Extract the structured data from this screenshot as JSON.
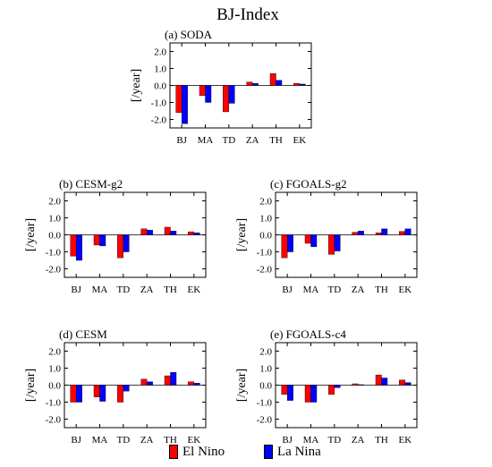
{
  "figure": {
    "title": "BJ-Index",
    "colors": {
      "el_nino": "#ff0000",
      "la_nina": "#0000ff"
    },
    "legend": {
      "el_nino": {
        "label": "El Nino",
        "color": "#ff0000"
      },
      "la_nina": {
        "label": "La Nina",
        "color": "#0000ff"
      }
    }
  },
  "chart_data": [
    {
      "type": "bar",
      "title": "(a) SODA",
      "ylabel": "[/year]",
      "ylim": [
        -2.5,
        2.5
      ],
      "yticks": [
        "2.0",
        "1.0",
        "0.0",
        "-1.0",
        "-2.0"
      ],
      "categories": [
        "BJ",
        "MA",
        "TD",
        "ZA",
        "TH",
        "EK"
      ],
      "series": [
        {
          "name": "El Nino",
          "color": "#ff0000",
          "values": [
            -1.6,
            -0.6,
            -1.55,
            0.2,
            0.7,
            0.12
          ]
        },
        {
          "name": "La Nina",
          "color": "#0000ff",
          "values": [
            -2.25,
            -1.0,
            -1.05,
            0.12,
            0.3,
            0.08
          ]
        }
      ]
    },
    {
      "type": "bar",
      "title": "(b) CESM-g2",
      "ylabel": "[/year]",
      "ylim": [
        -2.5,
        2.5
      ],
      "yticks": [
        "2.0",
        "1.0",
        "0.0",
        "-1.0",
        "-2.0"
      ],
      "categories": [
        "BJ",
        "MA",
        "TD",
        "ZA",
        "TH",
        "EK"
      ],
      "series": [
        {
          "name": "El Nino",
          "color": "#ff0000",
          "values": [
            -1.25,
            -0.6,
            -1.35,
            0.35,
            0.45,
            0.18
          ]
        },
        {
          "name": "La Nina",
          "color": "#0000ff",
          "values": [
            -1.5,
            -0.65,
            -1.0,
            0.28,
            0.22,
            0.12
          ]
        }
      ]
    },
    {
      "type": "bar",
      "title": "(c) FGOALS-g2",
      "ylabel": "[/year]",
      "ylim": [
        -2.5,
        2.5
      ],
      "yticks": [
        "2.0",
        "1.0",
        "0.0",
        "-1.0",
        "-2.0"
      ],
      "categories": [
        "BJ",
        "MA",
        "TD",
        "ZA",
        "TH",
        "EK"
      ],
      "series": [
        {
          "name": "El Nino",
          "color": "#ff0000",
          "values": [
            -1.35,
            -0.5,
            -1.15,
            0.15,
            0.12,
            0.2
          ]
        },
        {
          "name": "La Nina",
          "color": "#0000ff",
          "values": [
            -1.0,
            -0.7,
            -0.95,
            0.22,
            0.35,
            0.35
          ]
        }
      ]
    },
    {
      "type": "bar",
      "title": "(d) CESM",
      "ylabel": "[/year]",
      "ylim": [
        -2.5,
        2.5
      ],
      "yticks": [
        "2.0",
        "1.0",
        "0.0",
        "-1.0",
        "-2.0"
      ],
      "categories": [
        "BJ",
        "MA",
        "TD",
        "ZA",
        "TH",
        "EK"
      ],
      "series": [
        {
          "name": "El Nino",
          "color": "#ff0000",
          "values": [
            -1.0,
            -0.7,
            -1.0,
            0.35,
            0.55,
            0.2
          ]
        },
        {
          "name": "La Nina",
          "color": "#0000ff",
          "values": [
            -1.0,
            -0.95,
            -0.35,
            0.2,
            0.75,
            0.12
          ]
        }
      ]
    },
    {
      "type": "bar",
      "title": "(e) FGOALS-c4",
      "ylabel": "[/year]",
      "ylim": [
        -2.5,
        2.5
      ],
      "yticks": [
        "2.0",
        "1.0",
        "0.0",
        "-1.0",
        "-2.0"
      ],
      "categories": [
        "BJ",
        "MA",
        "TD",
        "ZA",
        "TH",
        "EK"
      ],
      "series": [
        {
          "name": "El Nino",
          "color": "#ff0000",
          "values": [
            -0.55,
            -1.0,
            -0.55,
            0.08,
            0.6,
            0.3
          ]
        },
        {
          "name": "La Nina",
          "color": "#0000ff",
          "values": [
            -0.9,
            -1.0,
            -0.15,
            0.03,
            0.42,
            0.15
          ]
        }
      ]
    }
  ]
}
